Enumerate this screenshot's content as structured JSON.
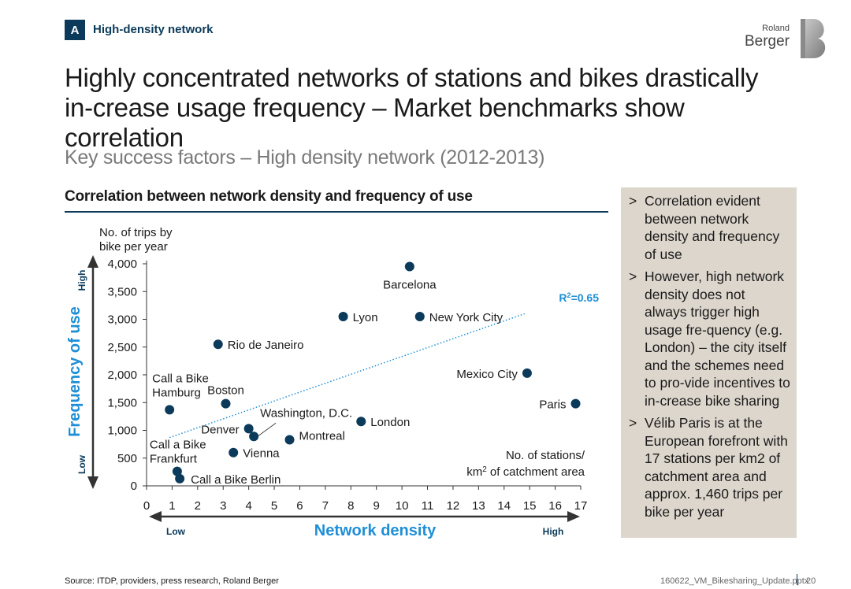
{
  "header": {
    "section_tag": "A",
    "section_label": "High-density network",
    "logo_line1": "Roland",
    "logo_line2": "Berger",
    "title": "Highly concentrated networks of stations and bikes drastically in-crease usage frequency – Market benchmarks show correlation",
    "subtitle": "Key success factors – High density network (2012-2013)"
  },
  "chart_heading": "Correlation between network density and frequency of use",
  "colors": {
    "navy": "#0b3a5a",
    "accent_blue": "#1e8fd6",
    "point": "#0b3a5a",
    "side_box": "#ddd6cd"
  },
  "chart_data": {
    "type": "scatter",
    "title": "Correlation between network density and frequency of use",
    "xlabel": "Network density",
    "ylabel": "Frequency of use",
    "x_axis_label": "No. of stations/ km2 of catchment area",
    "y_axis_label": "No. of trips by bike per year",
    "xlim": [
      0,
      17
    ],
    "ylim": [
      0,
      4000
    ],
    "x_ticks": [
      "0",
      "1",
      "2",
      "3",
      "4",
      "5",
      "6",
      "7",
      "8",
      "9",
      "10",
      "11",
      "12",
      "13",
      "14",
      "15",
      "16",
      "17"
    ],
    "y_ticks": [
      "0",
      "500",
      "1,000",
      "1,500",
      "2,000",
      "2,500",
      "3,000",
      "3,500",
      "4,000"
    ],
    "x_low": "Low",
    "x_high": "High",
    "y_low": "Low",
    "y_high": "High",
    "r_squared": "R2=0.65",
    "trendline": {
      "x1": 0.9,
      "y1": 870,
      "x2": 14.8,
      "y2": 3100
    },
    "points": [
      {
        "label": "Barcelona",
        "x": 10.3,
        "y": 3950
      },
      {
        "label": "Lyon",
        "x": 7.7,
        "y": 3050
      },
      {
        "label": "New York City",
        "x": 10.7,
        "y": 3050
      },
      {
        "label": "Rio de Janeiro",
        "x": 2.8,
        "y": 2550
      },
      {
        "label": "Mexico City",
        "x": 14.9,
        "y": 2030
      },
      {
        "label": "Paris",
        "x": 16.8,
        "y": 1480
      },
      {
        "label": "Boston",
        "x": 3.1,
        "y": 1480
      },
      {
        "label": "Call a Bike Hamburg",
        "x": 0.9,
        "y": 1370
      },
      {
        "label": "London",
        "x": 8.4,
        "y": 1160
      },
      {
        "label": "Washington, D.C.",
        "x": 4.2,
        "y": 890
      },
      {
        "label": "Denver",
        "x": 4.0,
        "y": 1030
      },
      {
        "label": "Montreal",
        "x": 5.6,
        "y": 830
      },
      {
        "label": "Vienna",
        "x": 3.4,
        "y": 600
      },
      {
        "label": "Call a Bike Frankfurt",
        "x": 1.2,
        "y": 260
      },
      {
        "label": "Call a Bike Berlin",
        "x": 1.3,
        "y": 130
      }
    ]
  },
  "bullets": [
    "Correlation evident between network density and frequency of use",
    "However, high network density does not always trigger high usage fre-quency (e.g. London) – the city itself and the schemes need to pro-vide incentives to in-crease bike sharing",
    "Vélib Paris is at the European forefront with 17 stations per km2 of catchment area and approx. 1,460 trips per bike per year"
  ],
  "footer": {
    "source": "Source: ITDP, providers, press research, Roland Berger",
    "file": "160622_VM_Bikesharing_Update.pptx",
    "page": "20"
  }
}
